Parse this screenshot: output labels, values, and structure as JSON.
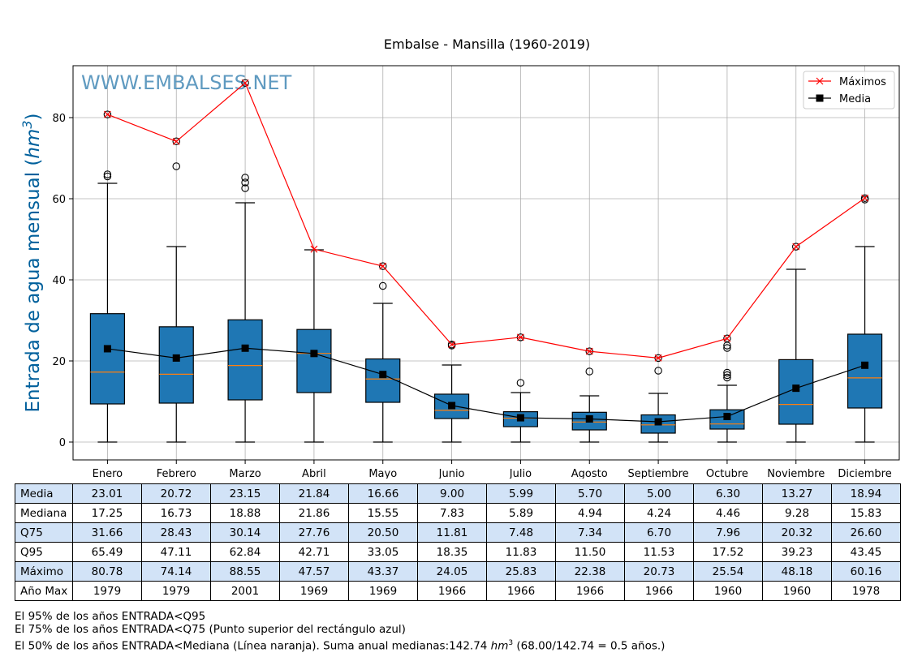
{
  "chart_data": {
    "type": "box",
    "title": "Embalse - Mansilla (1960-2019)",
    "watermark": "WWW.EMBALSES.NET",
    "ylabel": "Entrada de agua mensual",
    "ylabel_unit": "hm",
    "ylabel_unit_exp": "3",
    "ylim": [
      -4.4,
      92.8
    ],
    "yticks": [
      0,
      20,
      40,
      60,
      80
    ],
    "grid": true,
    "legend_placement": "top-right",
    "legend": [
      {
        "label": "Máximos",
        "color": "#ff0000",
        "marker": "x"
      },
      {
        "label": "Media",
        "color": "#000000",
        "marker": "square"
      }
    ],
    "colors": {
      "box": "#1f77b4",
      "median": "#ff7f0e",
      "max_line": "#ff0000",
      "mean_line": "#000000",
      "grid": "#b0b0b0",
      "watermark": "#5f9ac0",
      "ylabel": "#00609c"
    },
    "categories": [
      "Enero",
      "Febrero",
      "Marzo",
      "Abril",
      "Mayo",
      "Junio",
      "Julio",
      "Agosto",
      "Septiembre",
      "Octubre",
      "Noviembre",
      "Diciembre"
    ],
    "whisker_low": [
      0,
      0,
      0,
      0,
      0,
      0,
      0,
      0,
      0,
      0,
      0,
      0
    ],
    "q25": [
      9.4,
      9.6,
      10.4,
      12.2,
      9.8,
      5.8,
      3.8,
      3.0,
      2.2,
      3.2,
      4.4,
      8.4
    ],
    "median": [
      17.25,
      16.73,
      18.88,
      21.86,
      15.55,
      7.83,
      5.89,
      4.94,
      4.24,
      4.46,
      9.28,
      15.83
    ],
    "q75": [
      31.66,
      28.43,
      30.14,
      27.76,
      20.5,
      11.81,
      7.48,
      7.34,
      6.7,
      7.96,
      20.32,
      26.6
    ],
    "whisker_high": [
      63.8,
      48.2,
      59.0,
      47.4,
      34.2,
      19.0,
      12.2,
      11.4,
      12.0,
      14.0,
      42.6,
      48.2
    ],
    "mean": [
      23.01,
      20.72,
      23.15,
      21.84,
      16.66,
      9.0,
      5.99,
      5.7,
      5.0,
      6.3,
      13.27,
      18.94
    ],
    "maximum": [
      80.78,
      74.14,
      88.55,
      47.57,
      43.37,
      24.05,
      25.83,
      22.38,
      20.73,
      25.54,
      48.18,
      60.16
    ],
    "outliers": [
      [
        65.5,
        66.0,
        80.78
      ],
      [
        68.0,
        74.14
      ],
      [
        62.6,
        64.0,
        65.2,
        88.55
      ],
      [],
      [
        38.5,
        43.37
      ],
      [
        23.8,
        24.05
      ],
      [
        14.6,
        25.83
      ],
      [
        17.4,
        22.38
      ],
      [
        17.6,
        20.73
      ],
      [
        15.9,
        16.5,
        17.1,
        23.2,
        23.8,
        25.54
      ],
      [
        48.18
      ],
      [
        59.8,
        60.16
      ]
    ]
  },
  "table": {
    "rows": [
      {
        "label": "Media",
        "values": [
          "23.01",
          "20.72",
          "23.15",
          "21.84",
          "16.66",
          "9.00",
          "5.99",
          "5.70",
          "5.00",
          "6.30",
          "13.27",
          "18.94"
        ]
      },
      {
        "label": "Mediana",
        "values": [
          "17.25",
          "16.73",
          "18.88",
          "21.86",
          "15.55",
          "7.83",
          "5.89",
          "4.94",
          "4.24",
          "4.46",
          "9.28",
          "15.83"
        ]
      },
      {
        "label": "Q75",
        "values": [
          "31.66",
          "28.43",
          "30.14",
          "27.76",
          "20.50",
          "11.81",
          "7.48",
          "7.34",
          "6.70",
          "7.96",
          "20.32",
          "26.60"
        ]
      },
      {
        "label": "Q95",
        "values": [
          "65.49",
          "47.11",
          "62.84",
          "42.71",
          "33.05",
          "18.35",
          "11.83",
          "11.50",
          "11.53",
          "17.52",
          "39.23",
          "43.45"
        ]
      },
      {
        "label": "Máximo",
        "values": [
          "80.78",
          "74.14",
          "88.55",
          "47.57",
          "43.37",
          "24.05",
          "25.83",
          "22.38",
          "20.73",
          "25.54",
          "48.18",
          "60.16"
        ]
      },
      {
        "label": "Año Max",
        "values": [
          "1979",
          "1979",
          "2001",
          "1969",
          "1969",
          "1966",
          "1966",
          "1966",
          "1966",
          "1960",
          "1960",
          "1978"
        ]
      }
    ]
  },
  "footnotes": {
    "line1": "El 95% de los años ENTRADA<Q95",
    "line2": "El 75% de los años ENTRADA<Q75 (Punto superior del rectángulo azul)",
    "line3_a": "El 50% de los años ENTRADA<Mediana (Línea naranja). Suma anual medianas:142.74 ",
    "line3_unit": "hm",
    "line3_exp": "3",
    "line3_b": " (68.00/142.74 = 0.5 años.)"
  }
}
